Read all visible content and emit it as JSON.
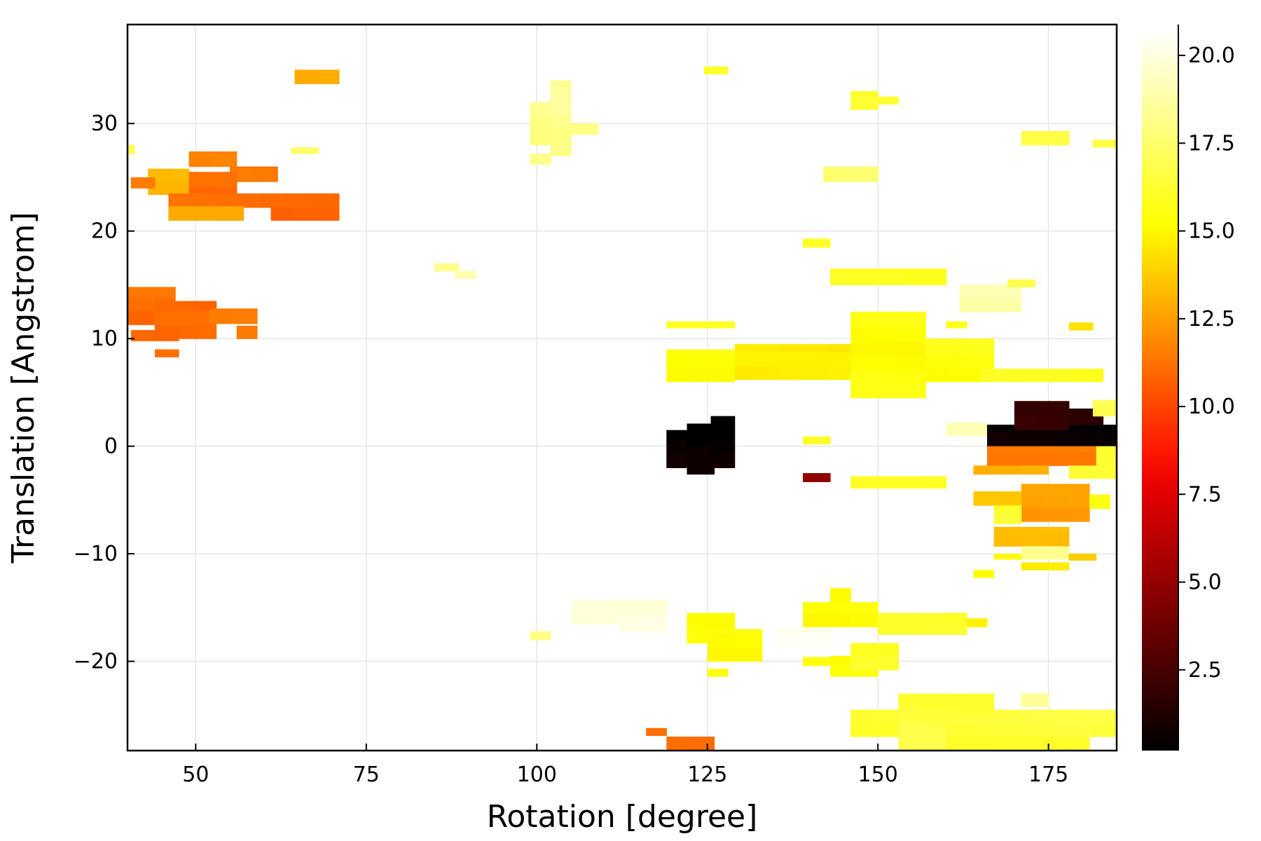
{
  "chart_data": {
    "type": "heatmap",
    "title": "",
    "xlabel": "Rotation [degree]",
    "ylabel": "Translation [Angstrom]",
    "xlim": [
      40,
      185
    ],
    "ylim": [
      -28.3,
      39.2
    ],
    "xticks": [
      50,
      75,
      100,
      125,
      150,
      175
    ],
    "xtick_labels": [
      "50",
      "75",
      "100",
      "125",
      "150",
      "175"
    ],
    "yticks": [
      -20,
      -10,
      0,
      10,
      20,
      30
    ],
    "ytick_labels": [
      "−20",
      "−10",
      "0",
      "10",
      "20",
      "30"
    ],
    "grid": true,
    "cell_width": 3.4,
    "cell_height": 1.3,
    "colorbar": {
      "colormap": "hot",
      "range": [
        0.2,
        20.7
      ],
      "ticks": [
        2.5,
        5.0,
        7.5,
        10.0,
        12.5,
        15.0,
        17.5,
        20.0
      ],
      "tick_labels": [
        "2.5",
        "5.0",
        "7.5",
        "10.0",
        "12.5",
        "15.0",
        "17.5",
        "20.0"
      ]
    },
    "regions": [
      {
        "x0": 64.5,
        "x1": 71.0,
        "y0": 33.7,
        "y1": 35.0,
        "value": 12.8
      },
      {
        "x0": 49.0,
        "x1": 56.0,
        "y0": 26.0,
        "y1": 27.4,
        "value": 11.2
      },
      {
        "x0": 55.0,
        "x1": 62.0,
        "y0": 24.6,
        "y1": 26.0,
        "value": 11.0
      },
      {
        "x0": 43.0,
        "x1": 49.0,
        "y0": 23.4,
        "y1": 25.8,
        "value": 13.3
      },
      {
        "x0": 40.5,
        "x1": 44.0,
        "y0": 24.0,
        "y1": 25.0,
        "value": 11.0
      },
      {
        "x0": 49.0,
        "x1": 56.0,
        "y0": 22.8,
        "y1": 25.5,
        "value": 10.7
      },
      {
        "x0": 46.0,
        "x1": 71.0,
        "y0": 22.2,
        "y1": 23.5,
        "value": 11.0
      },
      {
        "x0": 46.0,
        "x1": 57.0,
        "y0": 21.0,
        "y1": 22.3,
        "value": 13.0
      },
      {
        "x0": 61.0,
        "x1": 71.0,
        "y0": 21.0,
        "y1": 22.2,
        "value": 10.8
      },
      {
        "x0": 40.0,
        "x1": 47.0,
        "y0": 11.3,
        "y1": 14.8,
        "value": 10.9
      },
      {
        "x0": 44.0,
        "x1": 53.0,
        "y0": 10.0,
        "y1": 13.5,
        "value": 10.6
      },
      {
        "x0": 52.0,
        "x1": 59.0,
        "y0": 11.4,
        "y1": 12.8,
        "value": 11.0
      },
      {
        "x0": 40.5,
        "x1": 47.5,
        "y0": 9.8,
        "y1": 10.8,
        "value": 11.0
      },
      {
        "x0": 56.0,
        "x1": 59.0,
        "y0": 10.0,
        "y1": 11.2,
        "value": 11.0
      },
      {
        "x0": 44.0,
        "x1": 47.5,
        "y0": 8.3,
        "y1": 9.0,
        "value": 11.0
      },
      {
        "x0": 99.0,
        "x1": 105.0,
        "y0": 28.0,
        "y1": 32.0,
        "value": 18.2
      },
      {
        "x0": 102.0,
        "x1": 105.0,
        "y0": 27.0,
        "y1": 34.0,
        "value": 18.3
      },
      {
        "x0": 105.0,
        "x1": 109.0,
        "y0": 29.0,
        "y1": 30.0,
        "value": 18.3
      },
      {
        "x0": 99.0,
        "x1": 102.0,
        "y0": 26.2,
        "y1": 27.2,
        "value": 18.5
      },
      {
        "x0": 85.0,
        "x1": 88.5,
        "y0": 16.3,
        "y1": 17.0,
        "value": 18.5
      },
      {
        "x0": 88.0,
        "x1": 91.0,
        "y0": 15.6,
        "y1": 16.3,
        "value": 18.6
      },
      {
        "x0": 99.0,
        "x1": 102.0,
        "y0": -18.0,
        "y1": -17.2,
        "value": 18.3
      },
      {
        "x0": 105.0,
        "x1": 119.0,
        "y0": -16.5,
        "y1": -14.3,
        "value": 19.6
      },
      {
        "x0": 112.0,
        "x1": 119.0,
        "y0": -17.2,
        "y1": -16.0,
        "value": 20.0
      },
      {
        "x0": 135.0,
        "x1": 143.0,
        "y0": -18.6,
        "y1": -17.0,
        "value": 20.2
      },
      {
        "x0": 119.0,
        "x1": 129.0,
        "y0": 6.0,
        "y1": 9.0,
        "value": 15.4
      },
      {
        "x0": 129.0,
        "x1": 150.0,
        "y0": 6.2,
        "y1": 9.5,
        "value": 14.5
      },
      {
        "x0": 146.0,
        "x1": 157.0,
        "y0": 4.5,
        "y1": 12.5,
        "value": 15.3
      },
      {
        "x0": 157.0,
        "x1": 167.0,
        "y0": 6.0,
        "y1": 10.0,
        "value": 15.5
      },
      {
        "x0": 165.0,
        "x1": 183.0,
        "y0": 6.0,
        "y1": 7.2,
        "value": 15.9
      },
      {
        "x0": 119.0,
        "x1": 129.0,
        "y0": 11.0,
        "y1": 11.6,
        "value": 16.2
      },
      {
        "x0": 160.0,
        "x1": 163.0,
        "y0": 11.0,
        "y1": 11.6,
        "value": 16.0
      },
      {
        "x0": 143.0,
        "x1": 160.0,
        "y0": 15.0,
        "y1": 16.5,
        "value": 16.0
      },
      {
        "x0": 139.0,
        "x1": 143.0,
        "y0": 18.5,
        "y1": 19.3,
        "value": 16.0
      },
      {
        "x0": 162.0,
        "x1": 171.0,
        "y0": 12.5,
        "y1": 15.0,
        "value": 18.8
      },
      {
        "x0": 169.0,
        "x1": 173.0,
        "y0": 14.8,
        "y1": 15.5,
        "value": 16.5
      },
      {
        "x0": 178.0,
        "x1": 181.5,
        "y0": 10.8,
        "y1": 11.5,
        "value": 14.0
      },
      {
        "x0": 146.0,
        "x1": 150.0,
        "y0": 31.3,
        "y1": 33.0,
        "value": 16.2
      },
      {
        "x0": 149.0,
        "x1": 153.0,
        "y0": 31.8,
        "y1": 32.5,
        "value": 16.2
      },
      {
        "x0": 142.0,
        "x1": 150.0,
        "y0": 24.6,
        "y1": 26.0,
        "value": 17.4
      },
      {
        "x0": 124.5,
        "x1": 128.0,
        "y0": 34.6,
        "y1": 35.3,
        "value": 16.3
      },
      {
        "x0": 171.0,
        "x1": 178.0,
        "y0": 28.0,
        "y1": 29.3,
        "value": 17.0
      },
      {
        "x0": 181.5,
        "x1": 185.0,
        "y0": 27.8,
        "y1": 28.5,
        "value": 16.5
      },
      {
        "x0": 40.0,
        "x1": 41.0,
        "y0": 27.2,
        "y1": 28.0,
        "value": 16.5
      },
      {
        "x0": 64.0,
        "x1": 68.0,
        "y0": 27.2,
        "y1": 27.8,
        "value": 17.5
      },
      {
        "x0": 119.0,
        "x1": 129.0,
        "y0": -2.0,
        "y1": 1.5,
        "value": 0.4
      },
      {
        "x0": 122.0,
        "x1": 126.0,
        "y0": -2.6,
        "y1": 2.1,
        "value": 0.3
      },
      {
        "x0": 125.5,
        "x1": 129.0,
        "y0": 1.5,
        "y1": 2.8,
        "value": 0.4
      },
      {
        "x0": 139.0,
        "x1": 143.0,
        "y0": 0.2,
        "y1": 0.9,
        "value": 16.0
      },
      {
        "x0": 139.0,
        "x1": 143.0,
        "y0": -3.3,
        "y1": -2.5,
        "value": 4.3
      },
      {
        "x0": 146.0,
        "x1": 160.0,
        "y0": -3.9,
        "y1": -2.8,
        "value": 15.6
      },
      {
        "x0": 160.0,
        "x1": 166.0,
        "y0": 1.0,
        "y1": 2.2,
        "value": 18.8
      },
      {
        "x0": 166.0,
        "x1": 185.0,
        "y0": 0.0,
        "y1": 2.0,
        "value": 0.6
      },
      {
        "x0": 170.0,
        "x1": 178.0,
        "y0": 1.5,
        "y1": 4.2,
        "value": 2.0
      },
      {
        "x0": 178.0,
        "x1": 183.0,
        "y0": 2.0,
        "y1": 3.5,
        "value": 1.5
      },
      {
        "x0": 181.5,
        "x1": 185.0,
        "y0": 2.8,
        "y1": 4.3,
        "value": 17.2
      },
      {
        "x0": 166.0,
        "x1": 182.0,
        "y0": -1.8,
        "y1": 0.0,
        "value": 11.5
      },
      {
        "x0": 182.0,
        "x1": 185.0,
        "y0": -2.5,
        "y1": 0.0,
        "value": 16.0
      },
      {
        "x0": 164.0,
        "x1": 175.0,
        "y0": -2.6,
        "y1": -1.8,
        "value": 13.0
      },
      {
        "x0": 178.0,
        "x1": 185.0,
        "y0": -3.0,
        "y1": -1.8,
        "value": 16.2
      },
      {
        "x0": 171.0,
        "x1": 181.0,
        "y0": -7.0,
        "y1": -3.5,
        "value": 12.2
      },
      {
        "x0": 164.0,
        "x1": 171.0,
        "y0": -5.5,
        "y1": -4.2,
        "value": 13.2
      },
      {
        "x0": 167.0,
        "x1": 171.0,
        "y0": -7.2,
        "y1": -5.5,
        "value": 16.3
      },
      {
        "x0": 181.0,
        "x1": 184.0,
        "y0": -5.8,
        "y1": -4.5,
        "value": 15.5
      },
      {
        "x0": 167.0,
        "x1": 178.0,
        "y0": -9.3,
        "y1": -7.5,
        "value": 13.5
      },
      {
        "x0": 171.0,
        "x1": 178.0,
        "y0": -10.5,
        "y1": -9.3,
        "value": 18.0
      },
      {
        "x0": 167.0,
        "x1": 171.0,
        "y0": -10.5,
        "y1": -10.0,
        "value": 15.0
      },
      {
        "x0": 171.0,
        "x1": 178.0,
        "y0": -11.5,
        "y1": -10.8,
        "value": 14.6
      },
      {
        "x0": 178.0,
        "x1": 182.0,
        "y0": -10.6,
        "y1": -10.0,
        "value": 14.0
      },
      {
        "x0": 164.0,
        "x1": 167.0,
        "y0": -12.2,
        "y1": -11.5,
        "value": 15.0
      },
      {
        "x0": 122.0,
        "x1": 129.0,
        "y0": -18.3,
        "y1": -15.5,
        "value": 15.4
      },
      {
        "x0": 125.0,
        "x1": 133.0,
        "y0": -20.0,
        "y1": -17.0,
        "value": 15.3
      },
      {
        "x0": 125.0,
        "x1": 128.0,
        "y0": -21.4,
        "y1": -20.7,
        "value": 15.2
      },
      {
        "x0": 139.0,
        "x1": 150.0,
        "y0": -16.8,
        "y1": -14.5,
        "value": 15.3
      },
      {
        "x0": 143.0,
        "x1": 146.0,
        "y0": -14.5,
        "y1": -13.2,
        "value": 15.3
      },
      {
        "x0": 150.0,
        "x1": 163.0,
        "y0": -17.5,
        "y1": -15.5,
        "value": 15.8
      },
      {
        "x0": 163.0,
        "x1": 166.0,
        "y0": -16.8,
        "y1": -16.0,
        "value": 15.0
      },
      {
        "x0": 143.0,
        "x1": 150.0,
        "y0": -21.4,
        "y1": -19.5,
        "value": 15.3
      },
      {
        "x0": 146.0,
        "x1": 153.0,
        "y0": -20.8,
        "y1": -18.3,
        "value": 15.8
      },
      {
        "x0": 139.0,
        "x1": 143.0,
        "y0": -20.4,
        "y1": -19.6,
        "value": 15.5
      },
      {
        "x0": 116.0,
        "x1": 119.0,
        "y0": -26.9,
        "y1": -26.2,
        "value": 11.2
      },
      {
        "x0": 119.0,
        "x1": 126.0,
        "y0": -28.3,
        "y1": -27.0,
        "value": 11.0
      },
      {
        "x0": 146.0,
        "x1": 185.0,
        "y0": -27.0,
        "y1": -24.5,
        "value": 16.4
      },
      {
        "x0": 153.0,
        "x1": 167.0,
        "y0": -28.3,
        "y1": -23.0,
        "value": 16.5
      },
      {
        "x0": 160.0,
        "x1": 181.0,
        "y0": -28.3,
        "y1": -25.3,
        "value": 16.3
      },
      {
        "x0": 171.0,
        "x1": 175.0,
        "y0": -24.2,
        "y1": -23.0,
        "value": 18.8
      }
    ]
  }
}
